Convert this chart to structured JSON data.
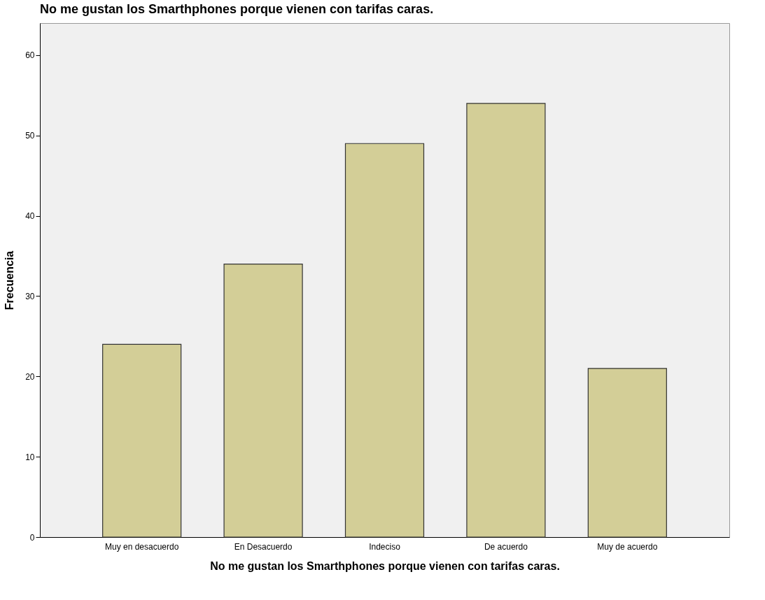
{
  "chart_data": {
    "type": "bar",
    "title": "No me gustan los Smarthphones porque vienen con tarifas caras.",
    "xlabel": "No me gustan los Smarthphones porque vienen con tarifas caras.",
    "ylabel": "Frecuencia",
    "categories": [
      "Muy en desacuerdo",
      "En Desacuerdo",
      "Indeciso",
      "De acuerdo",
      "Muy de acuerdo"
    ],
    "values": [
      24,
      34,
      49,
      54,
      21
    ],
    "color": "#d3ce97",
    "ylim": [
      0,
      64
    ],
    "yticks": [
      0,
      10,
      20,
      30,
      40,
      50,
      60
    ],
    "grid": false
  }
}
